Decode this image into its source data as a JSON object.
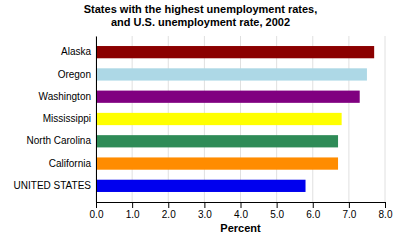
{
  "chart_data": {
    "type": "bar",
    "orientation": "horizontal",
    "title": "States with the highest unemployment rates,\nand U.S. unemployment rate, 2002",
    "categories": [
      "UNITED STATES",
      "California",
      "North Carolina",
      "Mississippi",
      "Washington",
      "Oregon",
      "Alaska"
    ],
    "values": [
      5.8,
      6.7,
      6.7,
      6.8,
      7.3,
      7.5,
      7.7
    ],
    "colors": [
      "#0000ee",
      "#ff8c00",
      "#2e8b57",
      "#ffff00",
      "#800080",
      "#add8e6",
      "#8b0000"
    ],
    "xlabel": "Percent",
    "xlim": [
      0.0,
      8.0
    ],
    "xticks": [
      {
        "value": 0,
        "label": "0.0"
      },
      {
        "value": 1,
        "label": "1.0"
      },
      {
        "value": 2,
        "label": "2.0"
      },
      {
        "value": 3,
        "label": "3.0"
      },
      {
        "value": 4,
        "label": "4.0"
      },
      {
        "value": 5,
        "label": "5.0"
      },
      {
        "value": 6,
        "label": "6.0"
      },
      {
        "value": 7,
        "label": "7.0"
      },
      {
        "value": 8,
        "label": "8.0"
      }
    ],
    "grid": true
  }
}
